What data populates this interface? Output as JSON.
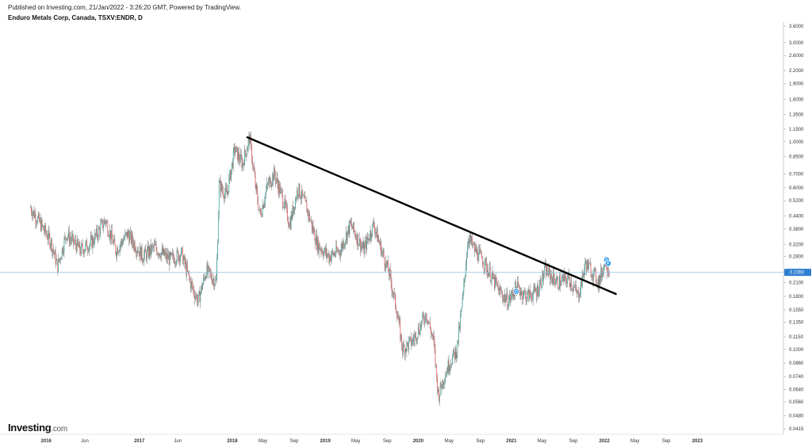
{
  "header": {
    "published": "Published on Investing.com, 21/Jan/2022 - 3:26:20 GMT, Powered by TradingView.",
    "title": "Enduro Metals Corp, Canada, TSXV:ENDR, D"
  },
  "logo": {
    "main": "Investing",
    "suffix": ".com"
  },
  "colors": {
    "up": "#26a69a",
    "down": "#ef5350",
    "wick": "#444444",
    "trendline": "#000000",
    "price_line": "#8ec5e6",
    "price_badge": "#2f7fd1",
    "marker": "#2196f3"
  },
  "chart_data": {
    "type": "candlestick",
    "scale": "log",
    "ylim": [
      0.0415,
      3.6
    ],
    "y_ticks": [
      3.6,
      3.0,
      2.6,
      2.2,
      1.9,
      1.6,
      1.35,
      1.15,
      1.0,
      0.85,
      0.7,
      0.6,
      0.52,
      0.44,
      0.38,
      0.32,
      0.28,
      0.21,
      0.18,
      0.155,
      0.135,
      0.115,
      0.1,
      0.086,
      0.074,
      0.064,
      0.056,
      0.048,
      0.0415
    ],
    "y_tick_labels": [
      "3.6000",
      "3.0000",
      "2.6000",
      "2.2000",
      "1.9000",
      "1.6000",
      "1.3500",
      "1.1500",
      "1.0000",
      "0.8500",
      "0.7000",
      "0.6000",
      "0.5200",
      "0.4400",
      "0.3800",
      "0.3200",
      "0.2800",
      "0.2100",
      "0.1800",
      "0.1550",
      "0.1350",
      "0.1150",
      "0.1000",
      "0.0860",
      "0.0740",
      "0.0640",
      "0.0560",
      "0.0480",
      "0.0415"
    ],
    "current_price": 0.235,
    "current_price_label": "0.2350",
    "x_ticks": [
      {
        "label": "2016",
        "date": "2016-01-01",
        "bold": true
      },
      {
        "label": "Jun",
        "date": "2016-06-01",
        "bold": false
      },
      {
        "label": "2017",
        "date": "2017-01-01",
        "bold": true
      },
      {
        "label": "Jun",
        "date": "2017-06-01",
        "bold": false
      },
      {
        "label": "2018",
        "date": "2018-01-01",
        "bold": true
      },
      {
        "label": "May",
        "date": "2018-05-01",
        "bold": false
      },
      {
        "label": "Sep",
        "date": "2018-09-01",
        "bold": false
      },
      {
        "label": "2019",
        "date": "2019-01-01",
        "bold": true
      },
      {
        "label": "May",
        "date": "2019-05-01",
        "bold": false
      },
      {
        "label": "Sep",
        "date": "2019-09-01",
        "bold": false
      },
      {
        "label": "2020",
        "date": "2020-01-01",
        "bold": true
      },
      {
        "label": "May",
        "date": "2020-05-01",
        "bold": false
      },
      {
        "label": "Sep",
        "date": "2020-09-01",
        "bold": false
      },
      {
        "label": "2021",
        "date": "2021-01-01",
        "bold": true
      },
      {
        "label": "May",
        "date": "2021-05-01",
        "bold": false
      },
      {
        "label": "Sep",
        "date": "2021-09-01",
        "bold": false
      },
      {
        "label": "2022",
        "date": "2022-01-01",
        "bold": true
      },
      {
        "label": "May",
        "date": "2022-05-01",
        "bold": false
      },
      {
        "label": "Sep",
        "date": "2022-09-01",
        "bold": false
      },
      {
        "label": "2023",
        "date": "2023-01-01",
        "bold": true
      }
    ],
    "close_path": [
      {
        "date": "2015-11-01",
        "close": 0.48
      },
      {
        "date": "2015-12-10",
        "close": 0.4
      },
      {
        "date": "2016-01-20",
        "close": 0.33
      },
      {
        "date": "2016-02-15",
        "close": 0.25
      },
      {
        "date": "2016-03-20",
        "close": 0.36
      },
      {
        "date": "2016-05-15",
        "close": 0.3
      },
      {
        "date": "2016-07-01",
        "close": 0.33
      },
      {
        "date": "2016-08-20",
        "close": 0.42
      },
      {
        "date": "2016-10-01",
        "close": 0.3
      },
      {
        "date": "2016-11-15",
        "close": 0.36
      },
      {
        "date": "2017-01-15",
        "close": 0.28
      },
      {
        "date": "2017-03-01",
        "close": 0.31
      },
      {
        "date": "2017-05-01",
        "close": 0.27
      },
      {
        "date": "2017-06-15",
        "close": 0.29
      },
      {
        "date": "2017-07-20",
        "close": 0.21
      },
      {
        "date": "2017-08-20",
        "close": 0.17
      },
      {
        "date": "2017-09-20",
        "close": 0.24
      },
      {
        "date": "2017-10-30",
        "close": 0.21
      },
      {
        "date": "2017-11-10",
        "close": 0.62
      },
      {
        "date": "2017-12-10",
        "close": 0.55
      },
      {
        "date": "2018-01-10",
        "close": 0.92
      },
      {
        "date": "2018-02-10",
        "close": 0.78
      },
      {
        "date": "2018-03-10",
        "close": 1.05
      },
      {
        "date": "2018-04-01",
        "close": 0.62
      },
      {
        "date": "2018-04-20",
        "close": 0.44
      },
      {
        "date": "2018-05-20",
        "close": 0.62
      },
      {
        "date": "2018-06-15",
        "close": 0.7
      },
      {
        "date": "2018-07-20",
        "close": 0.52
      },
      {
        "date": "2018-08-15",
        "close": 0.4
      },
      {
        "date": "2018-09-15",
        "close": 0.6
      },
      {
        "date": "2018-10-20",
        "close": 0.48
      },
      {
        "date": "2018-12-01",
        "close": 0.32
      },
      {
        "date": "2019-01-15",
        "close": 0.28
      },
      {
        "date": "2019-03-01",
        "close": 0.3
      },
      {
        "date": "2019-04-10",
        "close": 0.4
      },
      {
        "date": "2019-06-01",
        "close": 0.3
      },
      {
        "date": "2019-07-10",
        "close": 0.4
      },
      {
        "date": "2019-08-10",
        "close": 0.3
      },
      {
        "date": "2019-09-10",
        "close": 0.23
      },
      {
        "date": "2019-10-10",
        "close": 0.15
      },
      {
        "date": "2019-11-01",
        "close": 0.1
      },
      {
        "date": "2019-12-10",
        "close": 0.11
      },
      {
        "date": "2020-01-10",
        "close": 0.13
      },
      {
        "date": "2020-02-01",
        "close": 0.15
      },
      {
        "date": "2020-03-01",
        "close": 0.11
      },
      {
        "date": "2020-03-20",
        "close": 0.06
      },
      {
        "date": "2020-04-10",
        "close": 0.073
      },
      {
        "date": "2020-05-01",
        "close": 0.085
      },
      {
        "date": "2020-06-01",
        "close": 0.1
      },
      {
        "date": "2020-06-25",
        "close": 0.18
      },
      {
        "date": "2020-07-15",
        "close": 0.35
      },
      {
        "date": "2020-08-10",
        "close": 0.3
      },
      {
        "date": "2020-09-10",
        "close": 0.27
      },
      {
        "date": "2020-10-10",
        "close": 0.23
      },
      {
        "date": "2020-11-15",
        "close": 0.19
      },
      {
        "date": "2020-12-20",
        "close": 0.17
      },
      {
        "date": "2021-01-20",
        "close": 0.2
      },
      {
        "date": "2021-03-01",
        "close": 0.18
      },
      {
        "date": "2021-04-10",
        "close": 0.19
      },
      {
        "date": "2021-05-15",
        "close": 0.24
      },
      {
        "date": "2021-07-01",
        "close": 0.21
      },
      {
        "date": "2021-08-15",
        "close": 0.22
      },
      {
        "date": "2021-09-20",
        "close": 0.18
      },
      {
        "date": "2021-10-20",
        "close": 0.26
      },
      {
        "date": "2021-11-10",
        "close": 0.24
      },
      {
        "date": "2021-12-10",
        "close": 0.21
      },
      {
        "date": "2022-01-05",
        "close": 0.27
      },
      {
        "date": "2022-01-21",
        "close": 0.235
      }
    ],
    "trendline": {
      "start": {
        "date": "2018-03-01",
        "price": 1.05
      },
      "end": {
        "date": "2022-02-15",
        "price": 0.185
      }
    },
    "markers": [
      {
        "date": "2021-01-20",
        "price": 0.19,
        "label": "D"
      },
      {
        "date": "2022-01-10",
        "price": 0.27,
        "label": "D"
      },
      {
        "date": "2022-01-16",
        "price": 0.26,
        "label": "P"
      }
    ]
  }
}
